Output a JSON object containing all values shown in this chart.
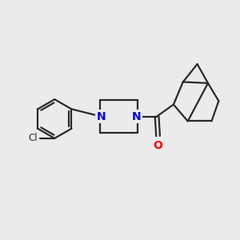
{
  "bg_color": "#ebebeb",
  "bond_color": "#2a2a2a",
  "N_color": "#0000ff",
  "O_color": "#ff0000",
  "line_width": 1.6,
  "figsize": [
    3.0,
    3.0
  ],
  "dpi": 100,
  "xlim": [
    0,
    10
  ],
  "ylim": [
    0,
    10
  ]
}
